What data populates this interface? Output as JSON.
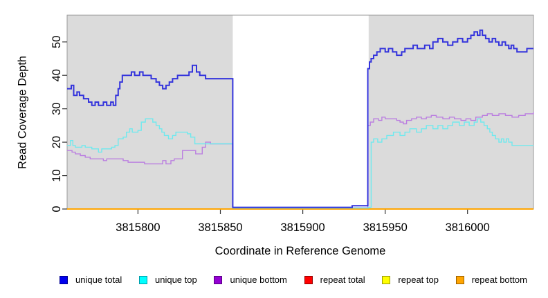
{
  "figure": {
    "background": "#FFFFFF"
  },
  "chart_data": {
    "type": "line",
    "style": "step",
    "title": "",
    "xlabel": "Coordinate in Reference Genome",
    "ylabel": "Read Coverage Depth",
    "xlim": [
      3815757,
      3816040
    ],
    "ylim": [
      0,
      58
    ],
    "grid": false,
    "panel_color": "#DBDBDB",
    "box_color": "#999999",
    "tick_color": "#333333",
    "legend_position": "bottom",
    "x_axis": {
      "ticks": [
        3815800,
        3815850,
        3815900,
        3815950,
        3816000
      ]
    },
    "y_axis": {
      "ticks": [
        0,
        10,
        20,
        30,
        40,
        50
      ]
    },
    "shaded_regions": [
      {
        "x0": 3815757,
        "x1": 3815857.5,
        "meaning": "unique flanking region"
      },
      {
        "x0": 3815940,
        "x1": 3816040,
        "meaning": "unique flanking region"
      }
    ],
    "legend_order": [
      "unique total",
      "unique top",
      "unique bottom",
      "repeat total",
      "repeat top",
      "repeat bottom"
    ],
    "series": [
      {
        "name": "repeat total",
        "color": "#DD0000",
        "legend_fill": "#FF0000",
        "legend_border": "#900000",
        "width": 1.5,
        "points": [
          [
            3815757,
            0
          ],
          [
            3816040,
            0
          ]
        ]
      },
      {
        "name": "repeat top",
        "color": "#FFFF00",
        "legend_fill": "#FFFF00",
        "legend_border": "#99990A",
        "width": 1.5,
        "points": [
          [
            3815757,
            0
          ],
          [
            3816040,
            0
          ]
        ]
      },
      {
        "name": "repeat bottom",
        "color": "#FFA500",
        "legend_fill": "#FFA500",
        "legend_border": "#9A5F00",
        "width": 2,
        "points": [
          [
            3815757,
            0
          ],
          [
            3816040,
            0
          ]
        ]
      },
      {
        "name": "unique bottom",
        "color": "#BB7FE0",
        "legend_fill": "#9400D3",
        "legend_border": "#55007F",
        "width": 1.4,
        "points": [
          [
            3815757,
            17.5
          ],
          [
            3815760,
            17
          ],
          [
            3815762,
            16.5
          ],
          [
            3815765,
            16
          ],
          [
            3815768,
            15.5
          ],
          [
            3815771,
            15
          ],
          [
            3815779,
            14.5
          ],
          [
            3815781,
            15
          ],
          [
            3815787,
            15
          ],
          [
            3815791,
            14.5
          ],
          [
            3815794,
            14
          ],
          [
            3815804,
            13.5
          ],
          [
            3815815,
            14.5
          ],
          [
            3815817,
            13.5
          ],
          [
            3815820,
            14.5
          ],
          [
            3815822,
            15
          ],
          [
            3815827,
            17.5
          ],
          [
            3815835,
            16.5
          ],
          [
            3815839,
            18.5
          ],
          [
            3815841,
            20
          ],
          [
            3815844,
            19.5
          ],
          [
            3815857.5,
            0.4
          ],
          [
            3815939.5,
            25
          ],
          [
            3815941,
            26
          ],
          [
            3815943,
            27
          ],
          [
            3815946,
            26.5
          ],
          [
            3815948,
            27.5
          ],
          [
            3815950,
            27
          ],
          [
            3815957,
            26.5
          ],
          [
            3815959,
            26
          ],
          [
            3815961,
            25.5
          ],
          [
            3815963,
            26.5
          ],
          [
            3815966,
            27
          ],
          [
            3815969,
            27.5
          ],
          [
            3815972,
            27
          ],
          [
            3815975,
            27.5
          ],
          [
            3815978,
            28
          ],
          [
            3815981,
            27.5
          ],
          [
            3815985,
            27
          ],
          [
            3815989,
            27.5
          ],
          [
            3815992,
            27
          ],
          [
            3815996,
            26.5
          ],
          [
            3815999,
            27
          ],
          [
            3816002,
            26.5
          ],
          [
            3816005,
            27.5
          ],
          [
            3816009,
            28
          ],
          [
            3816012,
            28.5
          ],
          [
            3816015,
            28
          ],
          [
            3816019,
            28.5
          ],
          [
            3816023,
            28
          ],
          [
            3816027,
            27.5
          ],
          [
            3816031,
            28
          ],
          [
            3816035,
            28.5
          ],
          [
            3816040,
            29
          ]
        ]
      },
      {
        "name": "unique top",
        "color": "#6FE9EE",
        "legend_fill": "#00FFFF",
        "legend_border": "#009BA8",
        "width": 1.4,
        "points": [
          [
            3815757,
            19
          ],
          [
            3815759,
            20.5
          ],
          [
            3815760.5,
            19
          ],
          [
            3815762,
            18.5
          ],
          [
            3815766,
            19
          ],
          [
            3815768,
            18.5
          ],
          [
            3815772,
            18
          ],
          [
            3815776,
            17
          ],
          [
            3815778,
            18
          ],
          [
            3815784,
            18.5
          ],
          [
            3815786,
            19
          ],
          [
            3815788,
            21
          ],
          [
            3815791,
            21.5
          ],
          [
            3815793,
            23
          ],
          [
            3815795,
            24
          ],
          [
            3815796.5,
            23
          ],
          [
            3815800,
            23.5
          ],
          [
            3815802,
            26
          ],
          [
            3815804.5,
            27
          ],
          [
            3815809,
            26
          ],
          [
            3815811,
            25
          ],
          [
            3815813,
            24
          ],
          [
            3815814.5,
            23
          ],
          [
            3815816,
            22
          ],
          [
            3815818.5,
            21
          ],
          [
            3815821,
            22
          ],
          [
            3815823,
            23
          ],
          [
            3815830,
            22.5
          ],
          [
            3815832,
            21.5
          ],
          [
            3815834.5,
            19.5
          ],
          [
            3815857.5,
            0.3
          ],
          [
            3815940,
            0.5
          ],
          [
            3815941.5,
            20
          ],
          [
            3815943,
            21
          ],
          [
            3815945.5,
            20
          ],
          [
            3815948,
            21
          ],
          [
            3815951,
            22
          ],
          [
            3815955,
            23
          ],
          [
            3815959,
            22
          ],
          [
            3815962,
            23
          ],
          [
            3815965,
            24
          ],
          [
            3815969,
            23
          ],
          [
            3815972,
            24
          ],
          [
            3815975,
            25
          ],
          [
            3815979,
            24
          ],
          [
            3815982,
            25
          ],
          [
            3815985,
            24
          ],
          [
            3815988,
            25
          ],
          [
            3815991,
            26
          ],
          [
            3815995,
            25
          ],
          [
            3815998,
            26
          ],
          [
            3816001,
            25
          ],
          [
            3816004,
            26
          ],
          [
            3816006,
            27
          ],
          [
            3816008,
            26
          ],
          [
            3816010,
            25
          ],
          [
            3816012,
            24
          ],
          [
            3816013.5,
            23
          ],
          [
            3816015,
            22
          ],
          [
            3816017,
            21
          ],
          [
            3816019,
            20
          ],
          [
            3816020.5,
            21
          ],
          [
            3816022,
            20
          ],
          [
            3816023.5,
            21
          ],
          [
            3816025,
            20
          ],
          [
            3816027,
            19
          ],
          [
            3816040,
            19
          ]
        ]
      },
      {
        "name": "unique total",
        "color": "#3333DC",
        "legend_fill": "#0000EE",
        "legend_border": "#000090",
        "width": 2,
        "points": [
          [
            3815757,
            36
          ],
          [
            3815759.5,
            37
          ],
          [
            3815761,
            34
          ],
          [
            3815763,
            35
          ],
          [
            3815764.5,
            34
          ],
          [
            3815767,
            33
          ],
          [
            3815770,
            32
          ],
          [
            3815772,
            31
          ],
          [
            3815774,
            32
          ],
          [
            3815776,
            31
          ],
          [
            3815779,
            32
          ],
          [
            3815781,
            31
          ],
          [
            3815783.5,
            32
          ],
          [
            3815785,
            31
          ],
          [
            3815786.5,
            34
          ],
          [
            3815788,
            36
          ],
          [
            3815789,
            38
          ],
          [
            3815790.5,
            40
          ],
          [
            3815796,
            41
          ],
          [
            3815798,
            40
          ],
          [
            3815801,
            41
          ],
          [
            3815803,
            40
          ],
          [
            3815808,
            39
          ],
          [
            3815811,
            38
          ],
          [
            3815813,
            37
          ],
          [
            3815815,
            36
          ],
          [
            3815817,
            37
          ],
          [
            3815819,
            38
          ],
          [
            3815821,
            39
          ],
          [
            3815824,
            40
          ],
          [
            3815831,
            41
          ],
          [
            3815833,
            43
          ],
          [
            3815835.5,
            41
          ],
          [
            3815837.5,
            40
          ],
          [
            3815841,
            39
          ],
          [
            3815857.5,
            0.5
          ],
          [
            3815930,
            1
          ],
          [
            3815939.5,
            42
          ],
          [
            3815940.5,
            44
          ],
          [
            3815941.5,
            45
          ],
          [
            3815943,
            46
          ],
          [
            3815945,
            47
          ],
          [
            3815947,
            48
          ],
          [
            3815950,
            47
          ],
          [
            3815952,
            48
          ],
          [
            3815954.5,
            47
          ],
          [
            3815957,
            46
          ],
          [
            3815960,
            47
          ],
          [
            3815962,
            48
          ],
          [
            3815967,
            49
          ],
          [
            3815969.5,
            48
          ],
          [
            3815974,
            49
          ],
          [
            3815977,
            48
          ],
          [
            3815979,
            50
          ],
          [
            3815982,
            51
          ],
          [
            3815985,
            50
          ],
          [
            3815988,
            49
          ],
          [
            3815991,
            50
          ],
          [
            3815994,
            51
          ],
          [
            3815997,
            50
          ],
          [
            3816000,
            51
          ],
          [
            3816002,
            52
          ],
          [
            3816004,
            53
          ],
          [
            3816006,
            52
          ],
          [
            3816007.5,
            53.5
          ],
          [
            3816009,
            52
          ],
          [
            3816011,
            51
          ],
          [
            3816013,
            50
          ],
          [
            3816015,
            51
          ],
          [
            3816017,
            50
          ],
          [
            3816019,
            49
          ],
          [
            3816021,
            50
          ],
          [
            3816023,
            49
          ],
          [
            3816025,
            48
          ],
          [
            3816026.5,
            49
          ],
          [
            3816028,
            48
          ],
          [
            3816030,
            47
          ],
          [
            3816034,
            47
          ],
          [
            3816036,
            48
          ],
          [
            3816040,
            48
          ]
        ]
      }
    ]
  }
}
